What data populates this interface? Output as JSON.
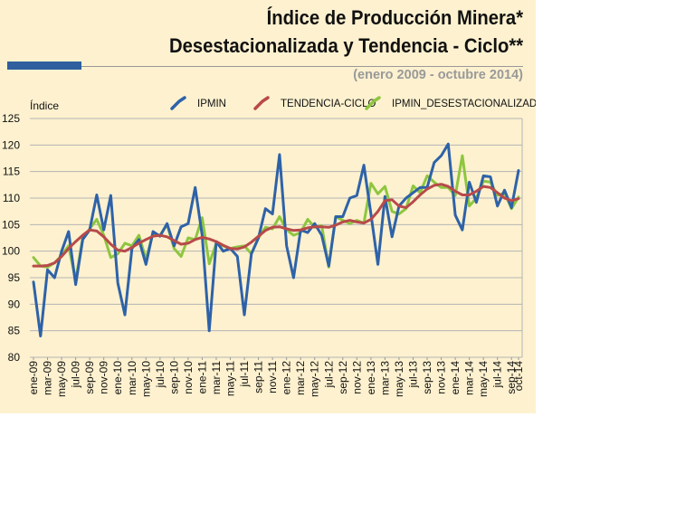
{
  "header": {
    "title_line1": "Índice de Producción Minera*",
    "title_line2": "Desestacionalizada y Tendencia - Ciclo**",
    "subtitle": "(enero 2009 - octubre 2014)"
  },
  "colors": {
    "panel_bg": "#fdf1cf",
    "accent_bar": "#2f5f9e",
    "subtitle": "#999999"
  },
  "chart_data": {
    "type": "line",
    "title": "Índice de Producción Minera* Desestacionalizada y Tendencia - Ciclo**",
    "subtitle": "(enero 2009 - octubre 2014)",
    "ylabel": "Índice",
    "xlabel": "",
    "ylim": [
      80,
      125
    ],
    "yticks": [
      125,
      120,
      115,
      110,
      105,
      100,
      95,
      90,
      85,
      80
    ],
    "grid": true,
    "legend_position": "top",
    "x": [
      "ene-09",
      "feb-09",
      "mar-09",
      "abr-09",
      "may-09",
      "jun-09",
      "jul-09",
      "ago-09",
      "sep-09",
      "oct-09",
      "nov-09",
      "dic-09",
      "ene-10",
      "feb-10",
      "mar-10",
      "abr-10",
      "may-10",
      "jun-10",
      "jul-10",
      "ago-10",
      "sep-10",
      "oct-10",
      "nov-10",
      "dic-10",
      "ene-11",
      "feb-11",
      "mar-11",
      "abr-11",
      "may-11",
      "jun-11",
      "jul-11",
      "ago-11",
      "sep-11",
      "oct-11",
      "nov-11",
      "dic-11",
      "ene-12",
      "feb-12",
      "mar-12",
      "abr-12",
      "may-12",
      "jun-12",
      "jul-12",
      "ago-12",
      "sep-12",
      "oct-12",
      "nov-12",
      "dic-12",
      "ene-13",
      "feb-13",
      "mar-13",
      "abr-13",
      "may-13",
      "jun-13",
      "jul-13",
      "ago-13",
      "sep-13",
      "oct-13",
      "nov-13",
      "dic-13",
      "ene-14",
      "feb-14",
      "mar-14",
      "abr-14",
      "may-14",
      "jun-14",
      "jul-14",
      "ago-14",
      "sep-14",
      "oct-14"
    ],
    "x_tick_labels": [
      "ene-09",
      "mar-09",
      "may-09",
      "jul-09",
      "sep-09",
      "nov-09",
      "ene-10",
      "mar-10",
      "may-10",
      "jul-10",
      "sep-10",
      "nov-10",
      "ene-11",
      "mar-11",
      "may-11",
      "jul-11",
      "sep-11",
      "nov-11",
      "ene-12",
      "mar-12",
      "may-12",
      "jul-12",
      "sep-12",
      "nov-12",
      "ene-13",
      "mar-13",
      "may-13",
      "jul-13",
      "sep-13",
      "nov-13",
      "ene-14",
      "mar-14",
      "may-14",
      "jul-14",
      "sep-14",
      "oct-14"
    ],
    "series": [
      {
        "name": "IPMIN",
        "color": "#2e62a8",
        "values": [
          94.2,
          84.0,
          96.5,
          95.0,
          100.0,
          103.7,
          93.7,
          102.2,
          104.0,
          110.6,
          104.0,
          110.5,
          94.0,
          88.0,
          100.5,
          102.2,
          97.5,
          103.7,
          102.8,
          105.2,
          101.0,
          104.6,
          105.2,
          112.0,
          103.0,
          85.0,
          101.8,
          100.0,
          100.5,
          99.0,
          88.0,
          99.5,
          102.5,
          108.0,
          107.0,
          118.2,
          101.0,
          95.0,
          104.0,
          103.5,
          105.2,
          103.0,
          97.2,
          106.5,
          106.5,
          110.0,
          110.5,
          116.2,
          107.0,
          97.5,
          110.3,
          102.7,
          108.5,
          110.0,
          111.0,
          112.0,
          112.0,
          116.7,
          118.0,
          120.2,
          106.8,
          104.0,
          113.0,
          109.2,
          114.2,
          114.0,
          108.5,
          111.5,
          108.2,
          115.2
        ]
      },
      {
        "name": "TENDENCIA-CICLO",
        "color": "#b84a4a",
        "values": [
          97.2,
          97.2,
          97.3,
          97.8,
          99.0,
          100.5,
          101.8,
          103.0,
          104.0,
          103.8,
          102.7,
          101.3,
          100.2,
          100.0,
          100.7,
          101.5,
          102.2,
          102.8,
          103.0,
          102.7,
          102.0,
          101.3,
          101.5,
          102.2,
          102.6,
          102.3,
          101.8,
          101.1,
          100.5,
          100.4,
          100.8,
          101.7,
          102.8,
          103.9,
          104.5,
          104.6,
          104.2,
          103.9,
          104.0,
          104.4,
          104.6,
          104.6,
          104.5,
          104.9,
          105.5,
          105.8,
          105.5,
          105.3,
          106.0,
          107.5,
          109.5,
          109.7,
          108.5,
          108.2,
          109.3,
          110.6,
          111.7,
          112.4,
          112.6,
          112.2,
          111.3,
          110.6,
          110.6,
          111.3,
          112.2,
          112.0,
          111.0,
          110.0,
          109.5,
          109.9
        ]
      },
      {
        "name": "IPMIN_DESESTACIONALIZADA",
        "color": "#8ec63f",
        "values": [
          98.8,
          97.2,
          97.0,
          97.8,
          99.2,
          101.0,
          94.5,
          102.5,
          104.2,
          106.0,
          103.0,
          98.8,
          99.5,
          101.5,
          101.0,
          103.0,
          98.5,
          103.3,
          103.0,
          105.0,
          100.5,
          99.0,
          102.5,
          102.2,
          106.3,
          97.6,
          101.5,
          101.0,
          100.5,
          100.8,
          101.0,
          99.5,
          102.5,
          104.5,
          104.2,
          106.5,
          104.0,
          103.0,
          103.5,
          106.0,
          104.5,
          104.8,
          97.0,
          106.5,
          105.8,
          105.2,
          105.8,
          105.3,
          112.8,
          110.8,
          112.2,
          107.5,
          107.0,
          108.0,
          112.3,
          111.0,
          114.2,
          113.0,
          112.0,
          112.0,
          110.5,
          118.0,
          108.5,
          110.0,
          113.2,
          113.0,
          110.5,
          111.0,
          108.0,
          110.2
        ]
      }
    ]
  }
}
